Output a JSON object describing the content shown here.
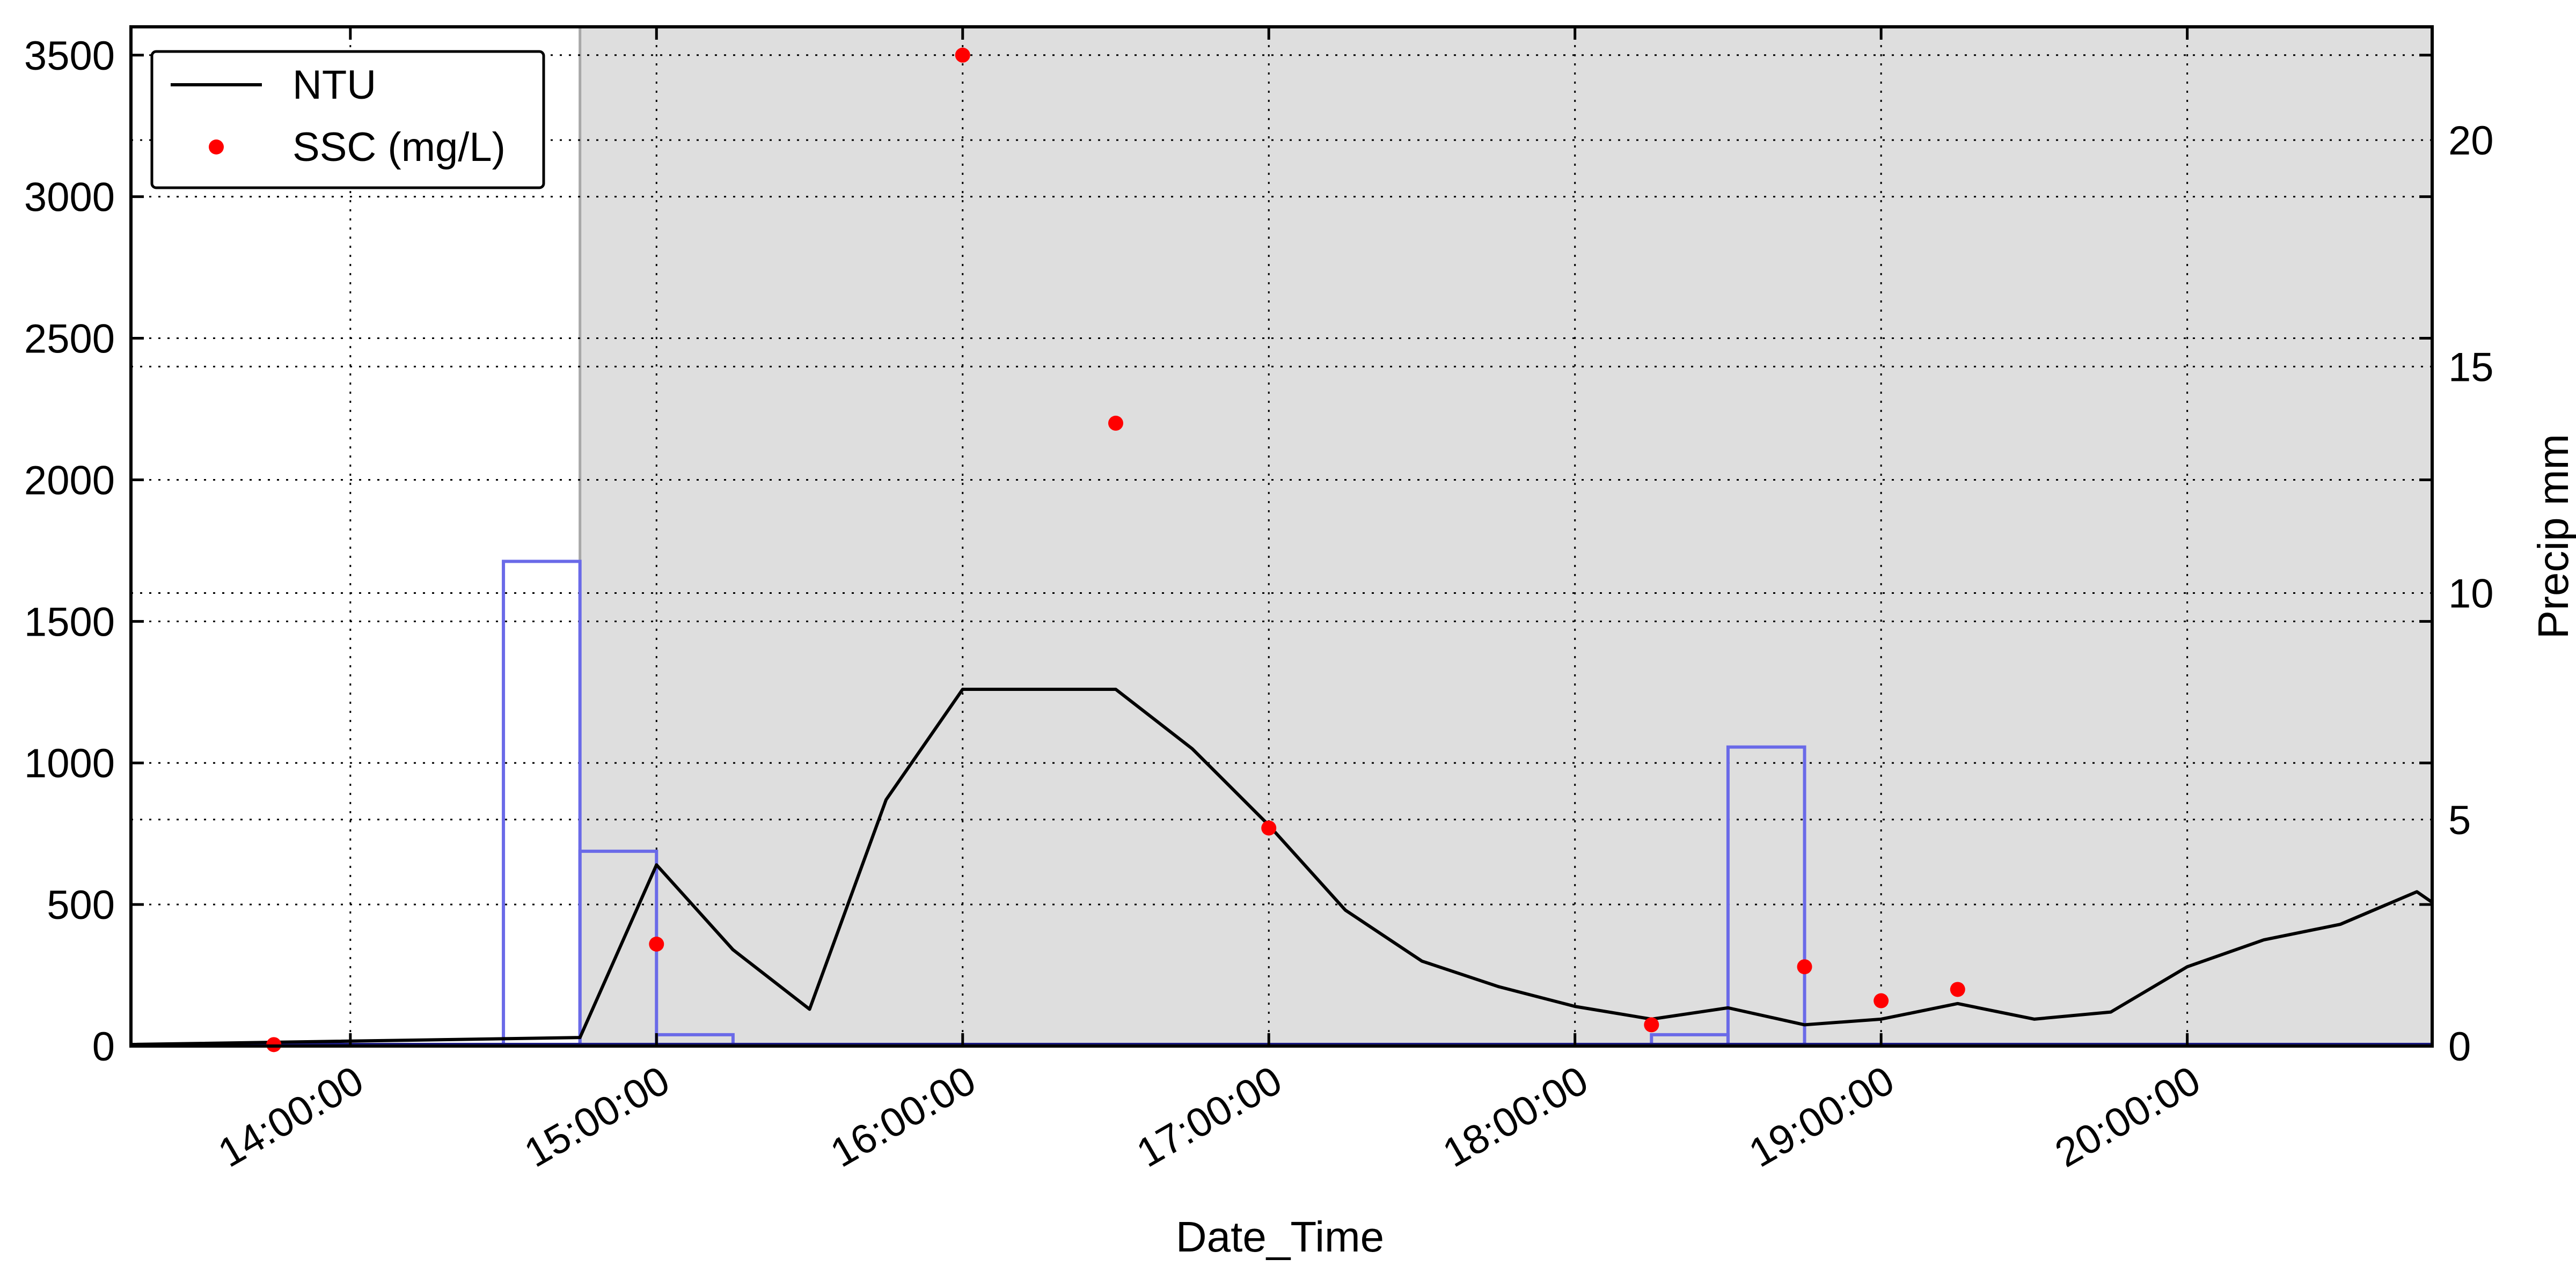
{
  "chart_data": {
    "type": "line",
    "xlabel": "Date_Time",
    "ylabel": "",
    "y2label": "Precip mm",
    "x_axis": {
      "range": [
        "13:17:00",
        "20:48:00"
      ],
      "ticks": [
        "14:00:00",
        "15:00:00",
        "16:00:00",
        "17:00:00",
        "18:00:00",
        "19:00:00",
        "20:00:00"
      ]
    },
    "y_axis": {
      "range": [
        0,
        3600
      ],
      "ticks": [
        0,
        500,
        1000,
        1500,
        2000,
        2500,
        3000,
        3500
      ]
    },
    "y2_axis": {
      "range": [
        0,
        22.5
      ],
      "ticks": [
        0,
        5,
        10,
        15,
        20
      ]
    },
    "grid": true,
    "legend": {
      "placement": "top-left",
      "entries": [
        {
          "label": "NTU",
          "kind": "line",
          "color": "#000000"
        },
        {
          "label": "SSC (mg/L)",
          "kind": "marker",
          "color": "#ff0000"
        }
      ]
    },
    "shaded_region": {
      "from": "14:45:00",
      "to": "20:48:00",
      "color": "#dedede",
      "edge_color": "#a8a8a8"
    },
    "series": [
      {
        "name": "NTU",
        "kind": "line",
        "axis": "left",
        "color": "#000000",
        "x": [
          "13:15:00",
          "14:45:00",
          "15:00:00",
          "15:15:00",
          "15:30:00",
          "15:45:00",
          "16:00:00",
          "16:15:00",
          "16:30:00",
          "16:45:00",
          "17:00:00",
          "17:15:00",
          "17:30:00",
          "17:45:00",
          "18:00:00",
          "18:15:00",
          "18:30:00",
          "18:45:00",
          "19:00:00",
          "19:15:00",
          "19:30:00",
          "19:45:00",
          "20:00:00",
          "20:15:00",
          "20:30:00",
          "20:45:00",
          "20:55:00"
        ],
        "values": [
          5,
          30,
          640,
          340,
          130,
          870,
          1260,
          1260,
          1260,
          1050,
          780,
          480,
          300,
          210,
          140,
          95,
          135,
          75,
          95,
          150,
          95,
          120,
          280,
          375,
          430,
          545,
          420
        ]
      },
      {
        "name": "SSC (mg/L)",
        "kind": "scatter",
        "axis": "left",
        "color": "#ff0000",
        "x": [
          "13:45:00",
          "15:00:00",
          "16:00:00",
          "16:30:00",
          "17:00:00",
          "18:15:00",
          "18:45:00",
          "19:00:00",
          "19:15:00"
        ],
        "values": [
          5,
          360,
          3500,
          2200,
          770,
          75,
          280,
          160,
          200
        ]
      },
      {
        "name": "",
        "kind": "step",
        "axis": "right",
        "color": "#6a6ae8",
        "intervals": [
          {
            "from": "14:30:00",
            "to": "14:45:00",
            "value": 10.7
          },
          {
            "from": "14:45:00",
            "to": "15:00:00",
            "value": 4.3
          },
          {
            "from": "15:00:00",
            "to": "15:15:00",
            "value": 0.25
          },
          {
            "from": "18:15:00",
            "to": "18:30:00",
            "value": 0.25
          },
          {
            "from": "18:30:00",
            "to": "18:45:00",
            "value": 6.6
          }
        ]
      }
    ]
  }
}
